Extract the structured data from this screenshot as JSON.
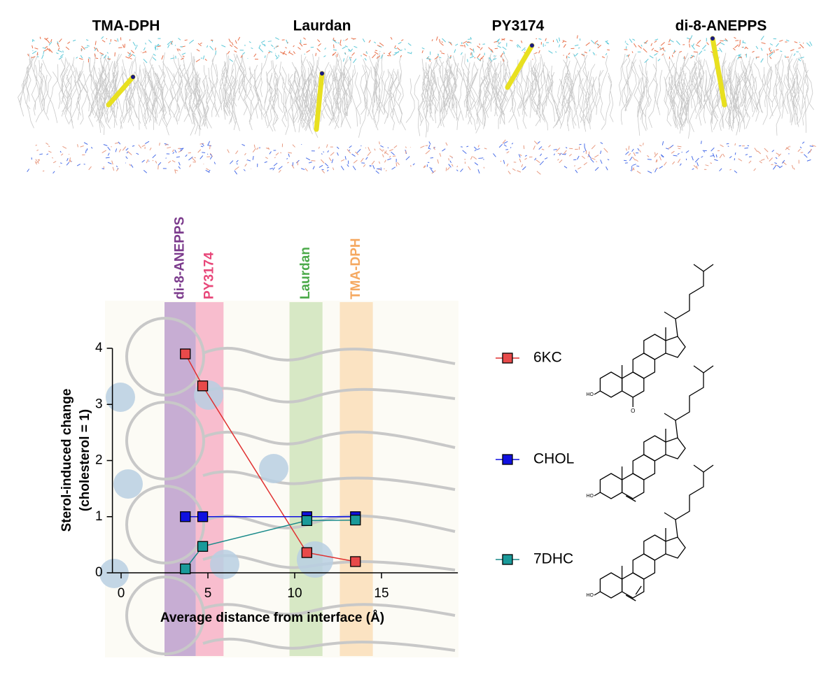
{
  "panel_titles": [
    "TMA-DPH",
    "Laurdan",
    "PY3174",
    "di-8-ANEPPS"
  ],
  "chart_data": {
    "type": "line",
    "xlabel": "Average distance from interface (Å)",
    "ylabel": [
      "Sterol-induced change",
      "(cholesterol = 1)"
    ],
    "xlim": [
      -0.5,
      19.4
    ],
    "xticks": [
      0,
      5,
      10,
      15
    ],
    "ylim": [
      0,
      4
    ],
    "yticks": [
      0,
      1,
      2,
      3,
      4
    ],
    "bands": [
      {
        "label": "di-8-ANEPPS",
        "xlim": [
          2.5,
          4.3
        ],
        "color": "#b08cc4",
        "text_color": "#7b3a8c"
      },
      {
        "label": "PY3174",
        "xlim": [
          4.3,
          5.9
        ],
        "color": "#f6a3bd",
        "text_color": "#e8487a"
      },
      {
        "label": "Laurdan",
        "xlim": [
          9.7,
          11.6
        ],
        "color": "#c8e0b0",
        "text_color": "#4caa4a"
      },
      {
        "label": "TMA-DPH",
        "xlim": [
          12.6,
          14.5
        ],
        "color": "#fbd9ad",
        "text_color": "#f5a860"
      }
    ],
    "series": [
      {
        "name": "6KC",
        "color": "#e84a4a",
        "line_color": "#e03030",
        "x": [
          3.7,
          4.7,
          10.7,
          13.5
        ],
        "values": [
          3.9,
          3.33,
          0.36,
          0.2
        ],
        "hydroxyl_label": "HO",
        "keto_label": "O"
      },
      {
        "name": "CHOL",
        "color": "#1010e0",
        "line_color": "#1010e0",
        "x": [
          3.7,
          4.7,
          10.7,
          13.5
        ],
        "values": [
          1.0,
          1.0,
          1.0,
          1.0
        ],
        "hydroxyl_label": "HO"
      },
      {
        "name": "7DHC",
        "color": "#1a9a9a",
        "line_color": "#1a8a8a",
        "x": [
          3.7,
          4.7,
          10.7,
          13.5
        ],
        "values": [
          0.07,
          0.47,
          0.93,
          0.94
        ],
        "hydroxyl_label": "HO"
      }
    ]
  }
}
